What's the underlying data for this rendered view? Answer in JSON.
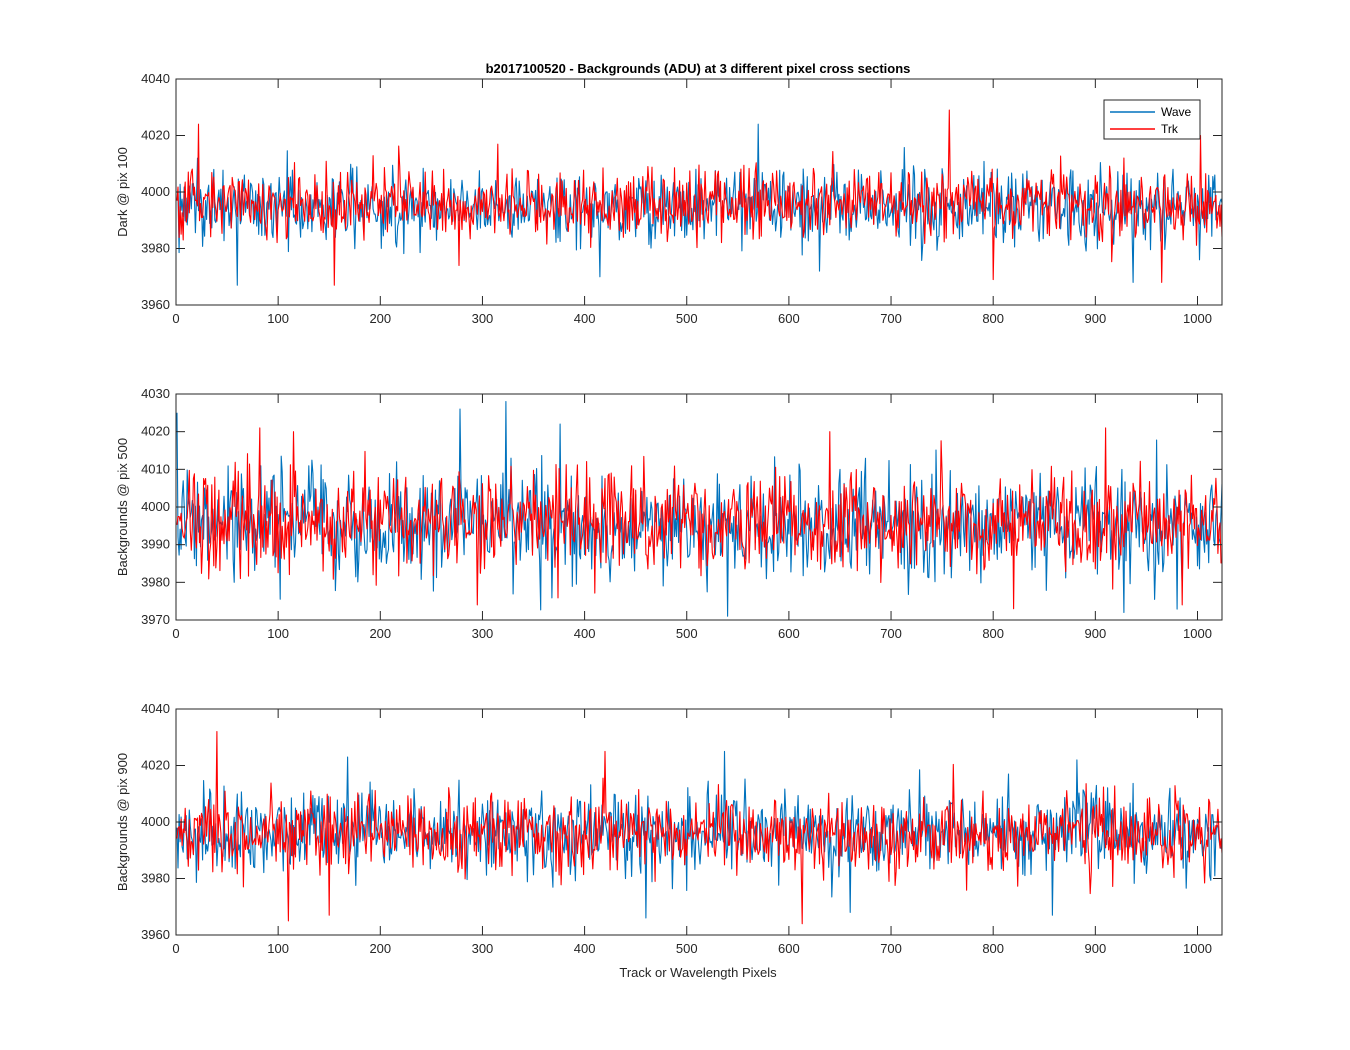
{
  "chart_data": {
    "type": "line",
    "title": "b2017100520 - Backgrounds (ADU) at 3 different pixel cross sections",
    "xlabel": "Track or Wavelength Pixels",
    "xlim": [
      0,
      1024
    ],
    "xticks": [
      0,
      100,
      200,
      300,
      400,
      500,
      600,
      700,
      800,
      900,
      1000
    ],
    "legend": {
      "position": "top-right",
      "entries": [
        "Wave",
        "Trk"
      ]
    },
    "colors": {
      "Wave": "#0072BD",
      "Trk": "#FF0000"
    },
    "grid": false,
    "subplots": [
      {
        "ylabel": "Dark @ pix 100",
        "ylim": [
          3960,
          4040
        ],
        "yticks": [
          3960,
          3980,
          4000,
          4020,
          4040
        ],
        "series": [
          {
            "name": "Wave",
            "mean": 3995,
            "std": 6.5,
            "min": 3967,
            "max": 4024,
            "peaks": [
              [
                60,
                3967
              ],
              [
                415,
                3970
              ],
              [
                570,
                4024
              ],
              [
                630,
                3972
              ],
              [
                937,
                3968
              ],
              [
                1002,
                3976
              ]
            ]
          },
          {
            "name": "Trk",
            "mean": 3996,
            "std": 6.0,
            "min": 3967,
            "max": 4029,
            "peaks": [
              [
                22,
                4024
              ],
              [
                155,
                3967
              ],
              [
                757,
                4029
              ],
              [
                800,
                3969
              ],
              [
                965,
                3968
              ],
              [
                1003,
                4020
              ]
            ]
          }
        ]
      },
      {
        "ylabel": "Backgrounds @ pix 500",
        "ylim": [
          3970,
          4030
        ],
        "yticks": [
          3970,
          3980,
          3990,
          4000,
          4010,
          4020,
          4030
        ],
        "series": [
          {
            "name": "Wave",
            "mean": 3995,
            "std": 7.0,
            "min": 3971,
            "max": 4028,
            "peaks": [
              [
                1,
                4025
              ],
              [
                278,
                4026
              ],
              [
                323,
                4028
              ],
              [
                376,
                4022
              ],
              [
                540,
                3971
              ],
              [
                928,
                3972
              ]
            ]
          },
          {
            "name": "Trk",
            "mean": 3996,
            "std": 6.5,
            "min": 3973,
            "max": 4021,
            "peaks": [
              [
                82,
                4021
              ],
              [
                115,
                4020
              ],
              [
                295,
                3974
              ],
              [
                640,
                4020
              ],
              [
                820,
                3973
              ],
              [
                910,
                4021
              ],
              [
                985,
                3974
              ]
            ]
          }
        ]
      },
      {
        "ylabel": "Backgrounds @ pix 900",
        "ylim": [
          3960,
          4040
        ],
        "yticks": [
          3960,
          3980,
          4000,
          4020,
          4040
        ],
        "series": [
          {
            "name": "Wave",
            "mean": 3996,
            "std": 7.5,
            "min": 3966,
            "max": 4025,
            "peaks": [
              [
                168,
                4023
              ],
              [
                460,
                3966
              ],
              [
                537,
                4025
              ],
              [
                660,
                3968
              ],
              [
                858,
                3967
              ],
              [
                882,
                4022
              ]
            ]
          },
          {
            "name": "Trk",
            "mean": 3996,
            "std": 7.0,
            "min": 3964,
            "max": 4032,
            "peaks": [
              [
                40,
                4032
              ],
              [
                110,
                3965
              ],
              [
                420,
                4025
              ],
              [
                613,
                3964
              ],
              [
                150,
                3967
              ]
            ]
          }
        ]
      }
    ]
  }
}
